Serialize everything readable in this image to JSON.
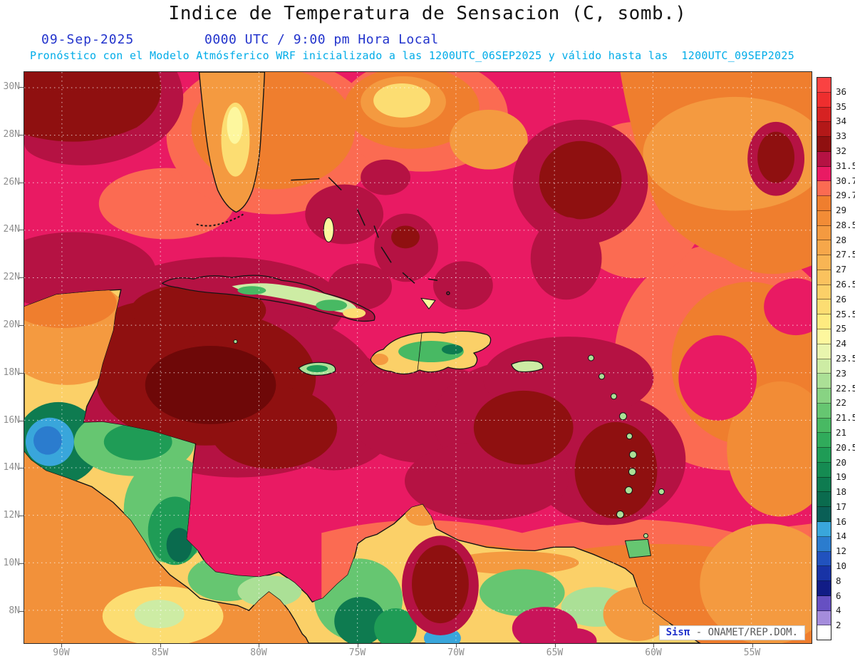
{
  "header": {
    "title": "Indice de Temperatura de Sensacion (C, somb.)",
    "date": "09-Sep-2025",
    "time": "0000 UTC / 9:00 pm Hora Local",
    "forecast_line": "Pronóstico con el Modelo Atmósferico WRF inicializado a las 1200UTC_06SEP2025 y válido hasta las  1200UTC_09SEP2025"
  },
  "map": {
    "lat_labels": [
      "30N",
      "28N",
      "26N",
      "24N",
      "22N",
      "20N",
      "18N",
      "16N",
      "14N",
      "12N",
      "10N",
      "8N"
    ],
    "lon_labels": [
      "90W",
      "85W",
      "80W",
      "75W",
      "70W",
      "65W",
      "60W",
      "55W"
    ]
  },
  "colorbar": {
    "cells": [
      "#FA4242",
      "#EE2E2E",
      "#D62222",
      "#B31818",
      "#8F1010",
      "#B51243",
      "#E91A63",
      "#FB6B52",
      "#EF7E2E",
      "#F28C36",
      "#F49A40",
      "#F6A74A",
      "#F8B554",
      "#FAC25E",
      "#FBD068",
      "#FCDD72",
      "#FEEB80",
      "#FDF79E",
      "#E9F5AE",
      "#CDECA4",
      "#ABE096",
      "#88D383",
      "#66C671",
      "#48B963",
      "#30AB5B",
      "#1F9C56",
      "#158B52",
      "#0E7B50",
      "#0A6B4E",
      "#0A5F56",
      "#39A6DB",
      "#2B7CCE",
      "#2152BE",
      "#1833A6",
      "#111C86",
      "#6650C2",
      "#A48CDC",
      "#FFFFFF"
    ],
    "labels": [
      "36",
      "35",
      "34",
      "33",
      "32",
      "31.5",
      "30.7",
      "29.7",
      "29",
      "28.5",
      "28",
      "27.5",
      "27",
      "26.5",
      "26",
      "25.5",
      "25",
      "24",
      "23.5",
      "23",
      "22.5",
      "22",
      "21.5",
      "21",
      "20.5",
      "20",
      "19",
      "18",
      "17",
      "16",
      "14",
      "12",
      "10",
      "8",
      "6",
      "4",
      "2"
    ]
  },
  "watermark": {
    "brand": "Sisπ",
    "text": " - ONAMET/REP.DOM."
  },
  "colors": {
    "title_black": "#141414",
    "date_blue": "#2233CC",
    "forecast_cyan": "#00ACE8",
    "axis_gray": "#8F8F8F",
    "base_pink": "#E91A63",
    "crimson": "#B51243",
    "maroon": "#8F1010",
    "salmon": "#FB6B52",
    "orange": "#EF7E2E"
  }
}
